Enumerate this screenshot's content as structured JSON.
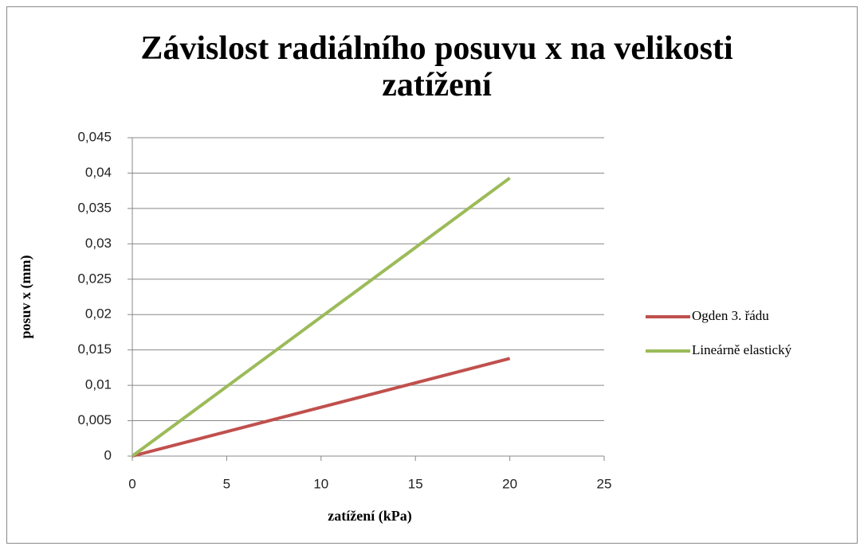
{
  "chart_data": {
    "type": "line",
    "title": "Závislost radiálního posuvu x na velikosti\nzatížení",
    "x_label": "zatížení (kPa)",
    "y_label": "posuv x (mm)",
    "x": [
      0,
      20
    ],
    "series": [
      {
        "name": "Ogden 3. řádu",
        "color": "#c0504d",
        "values": [
          0,
          0.0138
        ]
      },
      {
        "name": "Lineárně elastický",
        "color": "#9bbb59",
        "values": [
          0,
          0.0393
        ]
      }
    ],
    "xlim": [
      0,
      25
    ],
    "xticks": [
      0,
      5,
      10,
      15,
      20,
      25
    ],
    "ylim": [
      0,
      0.045
    ],
    "yticks": [
      0,
      {
        "value": 0.005,
        "label": "0,005"
      },
      {
        "value": 0.01,
        "label": "0,01"
      },
      {
        "value": 0.015,
        "label": "0,015"
      },
      {
        "value": 0.02,
        "label": "0,02"
      },
      {
        "value": 0.025,
        "label": "0,025"
      },
      {
        "value": 0.03,
        "label": "0,03"
      },
      {
        "value": 0.035,
        "label": "0,035"
      },
      {
        "value": 0.04,
        "label": "0,04"
      },
      {
        "value": 0.045,
        "label": "0,045"
      }
    ],
    "grid": true,
    "legend": "right"
  }
}
